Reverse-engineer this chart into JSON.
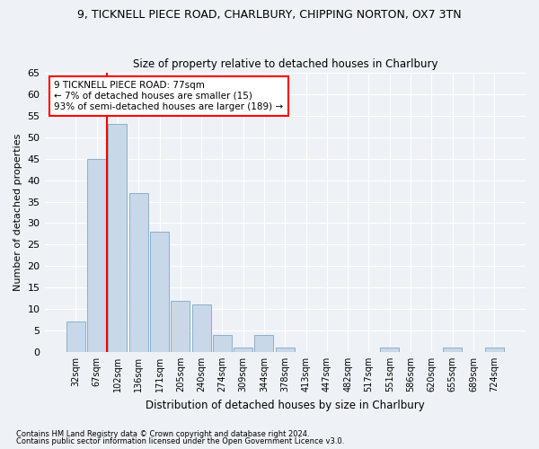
{
  "title1": "9, TICKNELL PIECE ROAD, CHARLBURY, CHIPPING NORTON, OX7 3TN",
  "title2": "Size of property relative to detached houses in Charlbury",
  "xlabel": "Distribution of detached houses by size in Charlbury",
  "ylabel": "Number of detached properties",
  "bin_labels": [
    "32sqm",
    "67sqm",
    "102sqm",
    "136sqm",
    "171sqm",
    "205sqm",
    "240sqm",
    "274sqm",
    "309sqm",
    "344sqm",
    "378sqm",
    "413sqm",
    "447sqm",
    "482sqm",
    "517sqm",
    "551sqm",
    "586sqm",
    "620sqm",
    "655sqm",
    "689sqm",
    "724sqm"
  ],
  "bar_values": [
    7,
    45,
    53,
    37,
    28,
    12,
    11,
    4,
    1,
    4,
    1,
    0,
    0,
    0,
    0,
    1,
    0,
    0,
    1,
    0,
    1
  ],
  "bar_color": "#c8d8e8",
  "bar_edge_color": "#8ab0cc",
  "red_line_x": 1.5,
  "annotation_title": "9 TICKNELL PIECE ROAD: 77sqm",
  "annotation_line1": "← 7% of detached houses are smaller (15)",
  "annotation_line2": "93% of semi-detached houses are larger (189) →",
  "ylim": [
    0,
    65
  ],
  "yticks": [
    0,
    5,
    10,
    15,
    20,
    25,
    30,
    35,
    40,
    45,
    50,
    55,
    60,
    65
  ],
  "footer1": "Contains HM Land Registry data © Crown copyright and database right 2024.",
  "footer2": "Contains public sector information licensed under the Open Government Licence v3.0.",
  "bg_color": "#eef2f7",
  "grid_color": "#ffffff"
}
